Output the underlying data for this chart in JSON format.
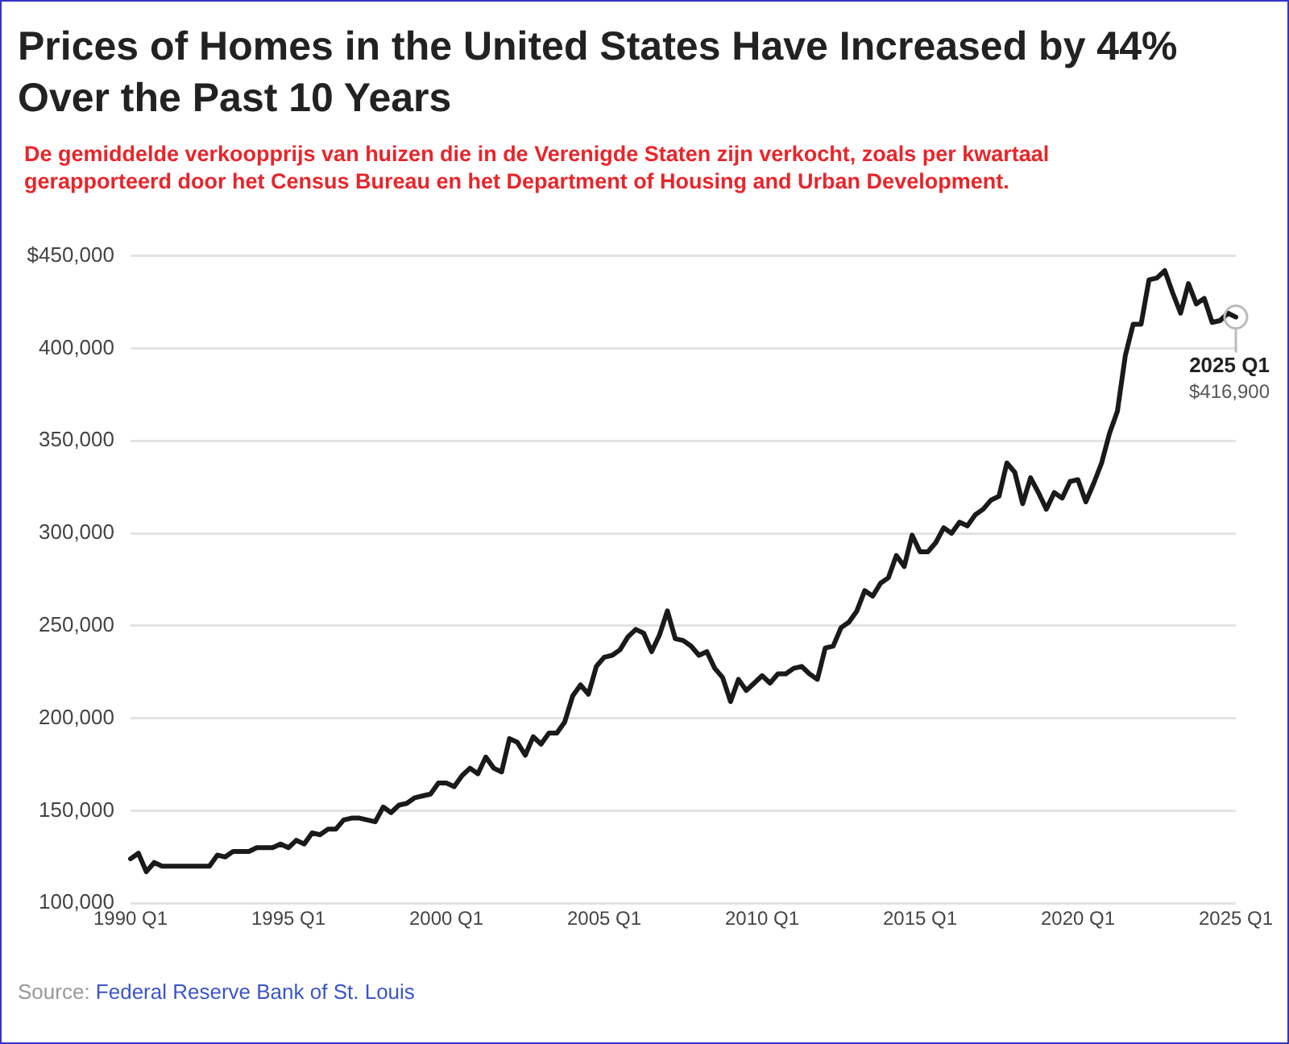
{
  "chart_data": {
    "type": "line",
    "title": "Prices of Homes in the United States Have Increased by 44% Over the Past 10 Years",
    "subtitle": "De gemiddelde verkoopprijs van huizen die in de Verenigde Staten zijn verkocht, zoals per kwartaal gerapporteerd door het Census Bureau en het Department of Housing and Urban Development.",
    "categories": [
      "1990 Q1",
      null,
      null,
      null,
      null,
      null,
      null,
      null,
      null,
      null,
      null,
      null,
      null,
      null,
      null,
      null,
      null,
      null,
      null,
      null,
      "1995 Q1",
      null,
      null,
      null,
      null,
      null,
      null,
      null,
      null,
      null,
      null,
      null,
      null,
      null,
      null,
      null,
      null,
      null,
      null,
      null,
      "2000 Q1",
      null,
      null,
      null,
      null,
      null,
      null,
      null,
      null,
      null,
      null,
      null,
      null,
      null,
      null,
      null,
      null,
      null,
      null,
      null,
      "2005 Q1",
      null,
      null,
      null,
      null,
      null,
      null,
      null,
      null,
      null,
      null,
      null,
      null,
      null,
      null,
      null,
      null,
      null,
      null,
      null,
      "2010 Q1",
      null,
      null,
      null,
      null,
      null,
      null,
      null,
      null,
      null,
      null,
      null,
      null,
      null,
      null,
      null,
      null,
      null,
      null,
      null,
      "2015 Q1",
      null,
      null,
      null,
      null,
      null,
      null,
      null,
      null,
      null,
      null,
      null,
      null,
      null,
      null,
      null,
      null,
      null,
      null,
      null,
      "2020 Q1",
      null,
      null,
      null,
      null,
      null,
      null,
      null,
      null,
      null,
      null,
      null,
      null,
      null,
      null,
      null,
      null,
      null,
      null,
      null,
      "2025 Q1"
    ],
    "series": [
      {
        "color": "#1a1a1a",
        "values": [
          124000,
          127000,
          117000,
          122000,
          120000,
          120000,
          120000,
          120000,
          120000,
          120000,
          120000,
          126000,
          125000,
          128000,
          128000,
          128000,
          130000,
          130000,
          130000,
          132000,
          130000,
          134000,
          132000,
          138000,
          137000,
          140000,
          140000,
          145000,
          146000,
          146000,
          145000,
          144000,
          152000,
          149000,
          153000,
          154000,
          157000,
          158000,
          159000,
          165000,
          165000,
          163000,
          169000,
          173000,
          170000,
          179000,
          173000,
          171000,
          189000,
          187000,
          180000,
          190000,
          186000,
          192000,
          192000,
          198000,
          212000,
          218000,
          213000,
          228000,
          233000,
          234000,
          237000,
          244000,
          248000,
          246000,
          236000,
          245000,
          258000,
          243000,
          242000,
          239000,
          234000,
          236000,
          227000,
          222000,
          209000,
          221000,
          215000,
          219000,
          223000,
          219000,
          224000,
          224000,
          227000,
          228000,
          224000,
          221000,
          238000,
          239000,
          249000,
          252000,
          258000,
          269000,
          266000,
          273000,
          276000,
          288000,
          282000,
          299000,
          290000,
          290000,
          295000,
          303000,
          300000,
          306000,
          304000,
          310000,
          313000,
          318000,
          320000,
          338000,
          333000,
          316000,
          330000,
          322000,
          313000,
          322000,
          319000,
          328000,
          329000,
          317000,
          327000,
          338000,
          354000,
          366000,
          396000,
          413000,
          413000,
          437000,
          438000,
          442000,
          430000,
          419000,
          435000,
          424000,
          427000,
          414000,
          415000,
          419000,
          416900
        ],
        "value_labels": [
          null,
          null,
          null,
          null,
          null,
          null,
          null,
          null,
          null,
          null,
          null,
          null,
          null,
          null,
          null,
          null,
          null,
          null,
          null,
          null,
          null,
          null,
          null,
          null,
          null,
          null,
          null,
          null,
          null,
          null,
          null,
          null,
          null,
          null,
          null,
          null,
          null,
          null,
          null,
          null,
          null,
          null,
          null,
          null,
          null,
          null,
          null,
          null,
          null,
          null,
          null,
          null,
          null,
          null,
          null,
          null,
          null,
          null,
          null,
          null,
          null,
          null,
          null,
          null,
          null,
          null,
          null,
          null,
          null,
          null,
          null,
          null,
          null,
          null,
          null,
          null,
          null,
          null,
          null,
          null,
          null,
          null,
          null,
          null,
          null,
          null,
          null,
          null,
          null,
          null,
          null,
          null,
          null,
          null,
          null,
          null,
          null,
          null,
          null,
          null,
          null,
          null,
          null,
          null,
          null,
          null,
          null,
          null,
          null,
          null,
          null,
          null,
          null,
          null,
          null,
          null,
          null,
          null,
          null,
          null,
          null,
          null,
          null,
          null,
          null,
          null,
          null,
          null,
          null,
          null,
          null,
          null,
          null,
          null,
          null,
          null,
          null,
          null,
          null,
          null,
          "$416,900"
        ]
      }
    ],
    "ylim": [
      100000,
      450000
    ],
    "yticks": [
      {
        "value": 100000,
        "label": "100,000"
      },
      {
        "value": 150000,
        "label": "150,000"
      },
      {
        "value": 200000,
        "label": "200,000"
      },
      {
        "value": 250000,
        "label": "250,000"
      },
      {
        "value": 300000,
        "label": "300,000"
      },
      {
        "value": 350000,
        "label": "350,000"
      },
      {
        "value": 400000,
        "label": "400,000"
      },
      {
        "value": 450000,
        "label": "$450,000"
      }
    ],
    "grid": "y",
    "legend": false,
    "marker": "none",
    "line_style": "solid",
    "annotations": [
      {
        "text": "2025 Q1",
        "x": "2025 Q1",
        "y": 416900
      },
      "Source: Federal Reserve Bank of St. Louis"
    ]
  }
}
